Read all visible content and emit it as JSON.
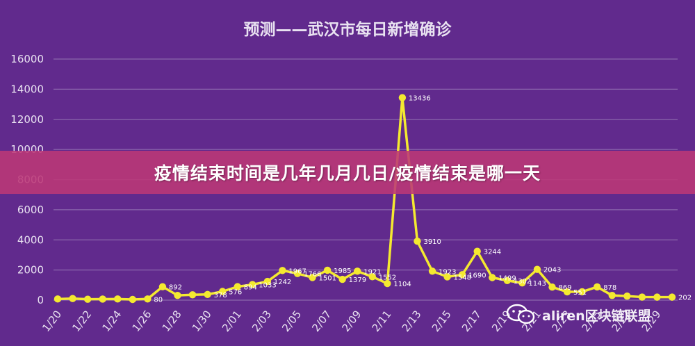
{
  "colors": {
    "background": "#612a8d",
    "grid": "#8b67ad",
    "line": "#f4e930",
    "text": "#e9e2f1",
    "banner": "#bc3876"
  },
  "banner": {
    "text": "疫情结束时间是几年几月几日/疫情结束是哪一天"
  },
  "watermark": {
    "icon": "wechat-icon",
    "text": "aliren区块链联盟"
  },
  "chart_data": {
    "type": "line",
    "title": "预测——武汉市每日新增确诊",
    "xlabel": "",
    "ylabel": "",
    "ylim": [
      0,
      16000
    ],
    "yticks": [
      0,
      2000,
      4000,
      6000,
      8000,
      10000,
      12000,
      14000,
      16000
    ],
    "grid": true,
    "x": [
      "1/20",
      "1/21",
      "1/22",
      "1/23",
      "1/24",
      "1/25",
      "1/26",
      "1/27",
      "1/28",
      "1/29",
      "1/30",
      "1/31",
      "2/01",
      "2/02",
      "2/03",
      "2/04",
      "2/05",
      "2/06",
      "2/07",
      "2/08",
      "2/09",
      "2/10",
      "2/11",
      "2/12",
      "2/13",
      "2/14",
      "2/15",
      "2/16",
      "2/17",
      "2/18",
      "2/19",
      "2/20",
      "2/21",
      "2/22",
      "2/23",
      "2/24",
      "2/25",
      "2/26",
      "2/27",
      "2/28",
      "2/29",
      "3/01"
    ],
    "xtick_labels": [
      "1/20",
      "1/22",
      "1/24",
      "1/26",
      "1/28",
      "1/30",
      "2/01",
      "2/03",
      "2/05",
      "2/07",
      "2/09",
      "2/11",
      "2/13",
      "2/15",
      "2/17",
      "2/19",
      "2/21",
      "2/23",
      "2/25",
      "2/27",
      "2/29"
    ],
    "series": [
      {
        "values": [
          77,
          105,
          62,
          70,
          77,
          46,
          80,
          892,
          315,
          356,
          378,
          576,
          894,
          1033,
          1242,
          1967,
          1766,
          1501,
          1985,
          1379,
          1921,
          1552,
          1104,
          13436,
          3910,
          1923,
          1548,
          1690,
          3244,
          1499,
          1302,
          1143,
          2043,
          869,
          551,
          558,
          878,
          315,
          268,
          205,
          202,
          202
        ],
        "labels": [
          "",
          "",
          "",
          "",
          "",
          "",
          "80",
          "892",
          "",
          "",
          "378",
          "576",
          "894",
          "1033",
          "1242",
          "1967",
          "1766",
          "1501",
          "1985",
          "1379",
          "1921",
          "1552",
          "1104",
          "13436",
          "3910",
          "1923",
          "1548",
          "1690",
          "3244",
          "1499",
          "1302",
          "1143",
          "2043",
          "869",
          "551",
          "",
          "878",
          "",
          "",
          "",
          "",
          "202"
        ]
      }
    ]
  }
}
